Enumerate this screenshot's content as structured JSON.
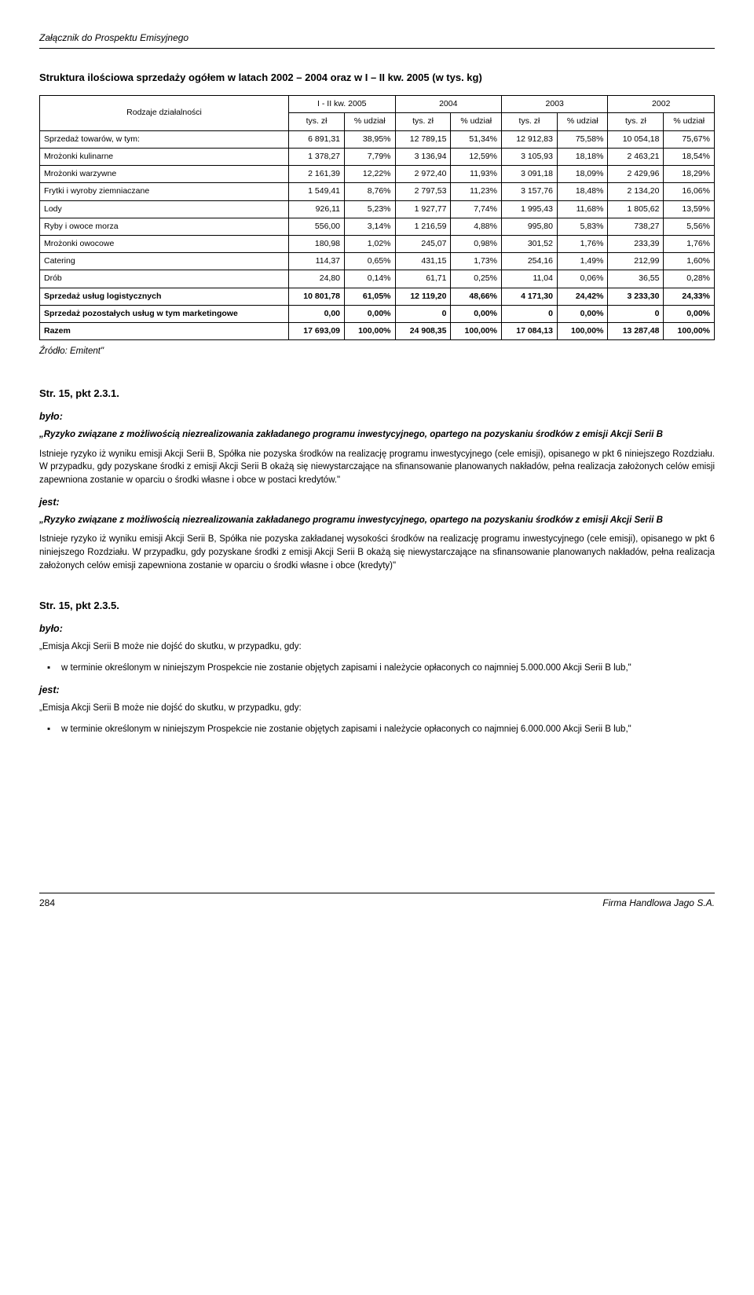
{
  "header": "Załącznik do Prospektu Emisyjnego",
  "tableTitle": "Struktura ilościowa sprzedaży ogółem w latach 2002 – 2004 oraz w I – II kw. 2005 (w tys. kg)",
  "table": {
    "cornerLabel": "Rodzaje działalności",
    "yearGroups": [
      "I - II kw. 2005",
      "2004",
      "2003",
      "2002"
    ],
    "subHeaders": [
      "tys. zł",
      "% udział",
      "tys. zł",
      "% udział",
      "tys. zł",
      "% udział",
      "tys. zł",
      "% udział"
    ],
    "rows": [
      {
        "label": "Sprzedaż towarów, w tym:",
        "vals": [
          "6 891,31",
          "38,95%",
          "12 789,15",
          "51,34%",
          "12 912,83",
          "75,58%",
          "10 054,18",
          "75,67%"
        ],
        "bold": false
      },
      {
        "label": "Mrożonki kulinarne",
        "vals": [
          "1 378,27",
          "7,79%",
          "3 136,94",
          "12,59%",
          "3 105,93",
          "18,18%",
          "2 463,21",
          "18,54%"
        ],
        "bold": false
      },
      {
        "label": "Mrożonki warzywne",
        "vals": [
          "2 161,39",
          "12,22%",
          "2 972,40",
          "11,93%",
          "3 091,18",
          "18,09%",
          "2 429,96",
          "18,29%"
        ],
        "bold": false
      },
      {
        "label": "Frytki i wyroby ziemniaczane",
        "vals": [
          "1 549,41",
          "8,76%",
          "2 797,53",
          "11,23%",
          "3 157,76",
          "18,48%",
          "2 134,20",
          "16,06%"
        ],
        "bold": false
      },
      {
        "label": "Lody",
        "vals": [
          "926,11",
          "5,23%",
          "1 927,77",
          "7,74%",
          "1 995,43",
          "11,68%",
          "1 805,62",
          "13,59%"
        ],
        "bold": false
      },
      {
        "label": "Ryby i owoce morza",
        "vals": [
          "556,00",
          "3,14%",
          "1 216,59",
          "4,88%",
          "995,80",
          "5,83%",
          "738,27",
          "5,56%"
        ],
        "bold": false
      },
      {
        "label": "Mrożonki owocowe",
        "vals": [
          "180,98",
          "1,02%",
          "245,07",
          "0,98%",
          "301,52",
          "1,76%",
          "233,39",
          "1,76%"
        ],
        "bold": false
      },
      {
        "label": "Catering",
        "vals": [
          "114,37",
          "0,65%",
          "431,15",
          "1,73%",
          "254,16",
          "1,49%",
          "212,99",
          "1,60%"
        ],
        "bold": false
      },
      {
        "label": "Drób",
        "vals": [
          "24,80",
          "0,14%",
          "61,71",
          "0,25%",
          "11,04",
          "0,06%",
          "36,55",
          "0,28%"
        ],
        "bold": false
      },
      {
        "label": "Sprzedaż usług logistycznych",
        "vals": [
          "10 801,78",
          "61,05%",
          "12 119,20",
          "48,66%",
          "4 171,30",
          "24,42%",
          "3 233,30",
          "24,33%"
        ],
        "bold": true
      },
      {
        "label": "Sprzedaż pozostałych usług w tym marketingowe",
        "vals": [
          "0,00",
          "0,00%",
          "0",
          "0,00%",
          "0",
          "0,00%",
          "0",
          "0,00%"
        ],
        "bold": true
      },
      {
        "label": "Razem",
        "vals": [
          "17 693,09",
          "100,00%",
          "24 908,35",
          "100,00%",
          "17 084,13",
          "100,00%",
          "13 287,48",
          "100,00%"
        ],
        "bold": true
      }
    ]
  },
  "source": "Źródło: Emitent\"",
  "section1": {
    "ref": "Str. 15, pkt 2.3.1.",
    "byloLabel": "było:",
    "byloTitle": "„Ryzyko związane z możliwością niezrealizowania zakładanego programu inwestycyjnego, opartego na pozyskaniu środków z emisji Akcji Serii B",
    "byloBody": "Istnieje ryzyko iż wyniku emisji Akcji Serii B, Spółka nie pozyska środków na realizację programu inwestycyjnego (cele emisji), opisanego w pkt 6 niniejszego Rozdziału. W przypadku, gdy pozyskane środki z emisji Akcji Serii B okażą się niewystarczające na sfinansowanie planowanych nakładów, pełna realizacja założonych celów emisji zapewniona zostanie w oparciu o środki własne i obce w postaci kredytów.\"",
    "jestLabel": "jest:",
    "jestTitle": "„Ryzyko związane z możliwością niezrealizowania zakładanego programu inwestycyjnego, opartego na pozyskaniu środków z emisji Akcji Serii B",
    "jestBody": "Istnieje ryzyko iż wyniku emisji Akcji Serii B, Spółka nie pozyska zakładanej wysokości środków na realizację programu inwestycyjnego (cele emisji), opisanego w pkt 6 niniejszego Rozdziału. W przypadku, gdy pozyskane środki z emisji Akcji Serii B okażą się niewystarczające na sfinansowanie planowanych nakładów, pełna realizacja założonych celów emisji zapewniona zostanie w oparciu o środki własne i obce (kredyty)\""
  },
  "section2": {
    "ref": "Str. 15, pkt 2.3.5.",
    "byloLabel": "było:",
    "byloLead": "„Emisja Akcji Serii B może nie dojść do skutku, w przypadku, gdy:",
    "byloBullet": "w terminie określonym w niniejszym Prospekcie nie zostanie objętych zapisami i należycie opłaconych co najmniej 5.000.000 Akcji Serii B lub,\"",
    "jestLabel": "jest:",
    "jestLead": "„Emisja Akcji Serii B może nie dojść do skutku, w przypadku, gdy:",
    "jestBullet": "w terminie określonym w niniejszym Prospekcie nie zostanie objętych zapisami i należycie opłaconych co najmniej 6.000.000 Akcji Serii B lub,\""
  },
  "footer": {
    "pageNum": "284",
    "right": "Firma Handlowa Jago S.A."
  }
}
